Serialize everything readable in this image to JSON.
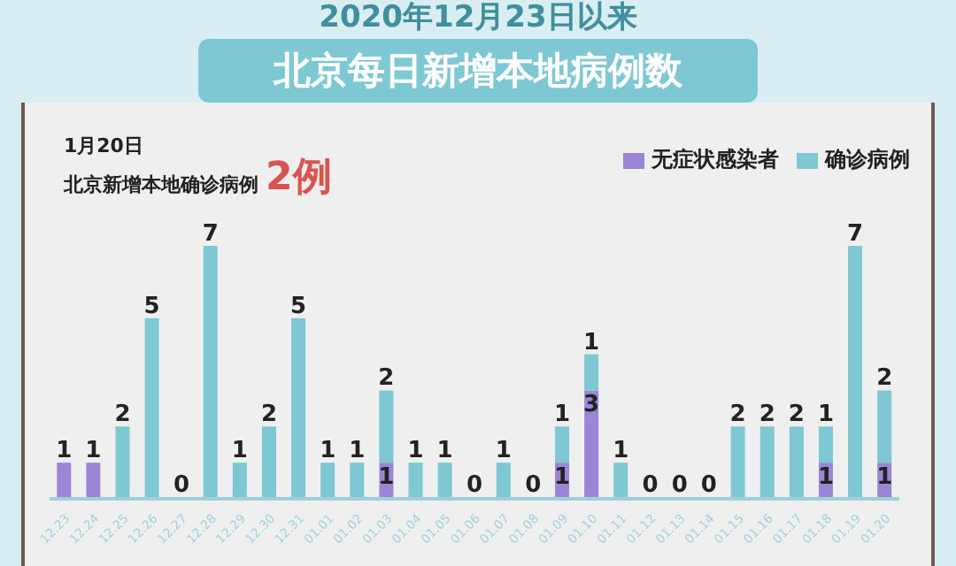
{
  "chart_data": {
    "type": "bar",
    "title": "2020年12月23日以来",
    "subtitle": "北京每日新增本地病例数",
    "annotations": [
      "1月20日",
      "北京新增本地确诊病例",
      "2例"
    ],
    "categories": [
      "12.23",
      "12.24",
      "12.25",
      "12.26",
      "12.27",
      "12.28",
      "12.29",
      "12.30",
      "12.31",
      "01.01",
      "01.02",
      "01.03",
      "01.04",
      "01.05",
      "01.06",
      "01.07",
      "01.08",
      "01.09",
      "01.10",
      "01.11",
      "01.12",
      "01.13",
      "01.14",
      "01.15",
      "01.16",
      "01.17",
      "01.18",
      "01.19",
      "01.20"
    ],
    "stacked": true,
    "legend": "top",
    "tick_labels": "x",
    "grid": false,
    "series": [
      {
        "name": "无症状感染者",
        "color": "#9b86d6",
        "values": [
          1,
          1,
          0,
          0,
          0,
          0,
          0,
          0,
          0,
          0,
          0,
          1,
          0,
          0,
          0,
          0,
          0,
          1,
          3,
          0,
          0,
          0,
          0,
          0,
          0,
          0,
          1,
          0,
          1
        ],
        "value_labels": [
          "1",
          "1",
          null,
          null,
          null,
          null,
          null,
          null,
          null,
          null,
          null,
          "1",
          null,
          null,
          null,
          null,
          null,
          "1",
          "3",
          null,
          null,
          null,
          null,
          null,
          null,
          null,
          "1",
          null,
          "1"
        ]
      },
      {
        "name": "确诊病例",
        "color": "#7ec8d3",
        "values": [
          0,
          0,
          2,
          5,
          0,
          7,
          1,
          2,
          5,
          1,
          1,
          2,
          1,
          1,
          0,
          1,
          0,
          1,
          1,
          1,
          0,
          0,
          0,
          2,
          2,
          2,
          1,
          7,
          2
        ],
        "value_labels": [
          null,
          null,
          "2",
          "5",
          "0",
          "7",
          "1",
          "2",
          "5",
          "1",
          "1",
          "2",
          "1",
          "1",
          "0",
          "1",
          "0",
          "1",
          "1",
          "1",
          "0",
          "0",
          "0",
          "2",
          "2",
          "2",
          "1",
          "7",
          "2"
        ]
      }
    ]
  }
}
